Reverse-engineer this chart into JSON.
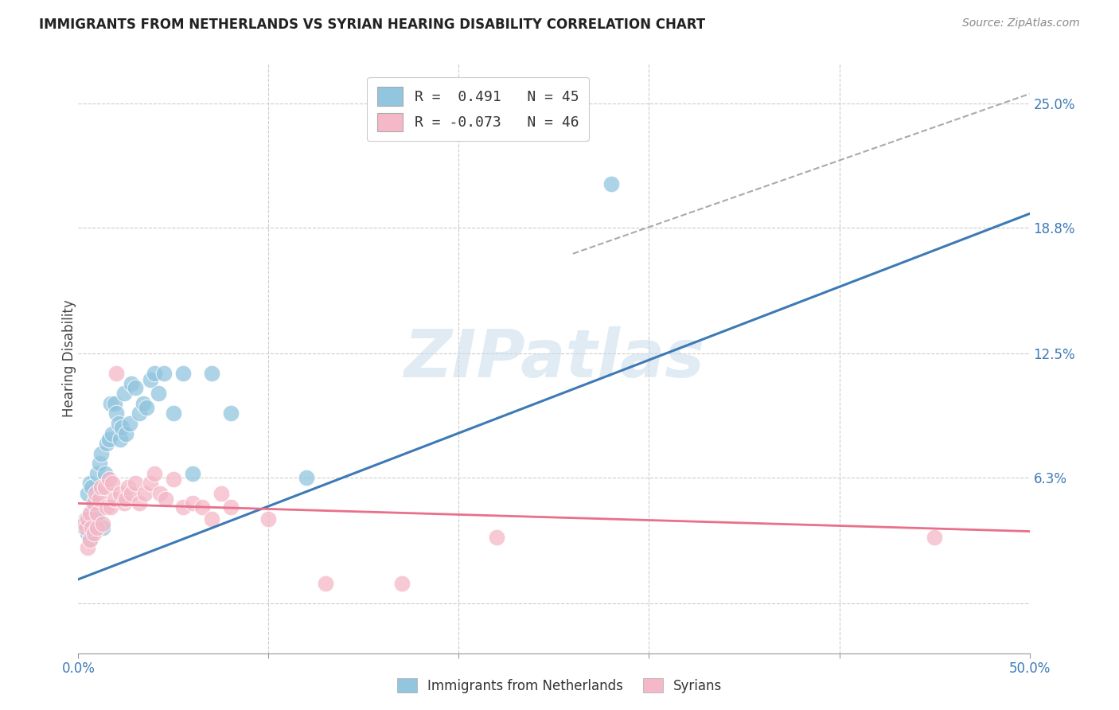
{
  "title": "IMMIGRANTS FROM NETHERLANDS VS SYRIAN HEARING DISABILITY CORRELATION CHART",
  "source": "Source: ZipAtlas.com",
  "ylabel": "Hearing Disability",
  "y_ticks": [
    0.0,
    0.063,
    0.125,
    0.188,
    0.25
  ],
  "y_tick_labels": [
    "",
    "6.3%",
    "12.5%",
    "18.8%",
    "25.0%"
  ],
  "x_min": 0.0,
  "x_max": 0.5,
  "y_min": -0.025,
  "y_max": 0.27,
  "legend_r1": "R =  0.491   N = 45",
  "legend_r2": "R = -0.073   N = 46",
  "blue_color": "#92c5de",
  "pink_color": "#f4b8c8",
  "blue_line_color": "#3d7ab5",
  "pink_line_color": "#e8708a",
  "dashed_line_color": "#aaaaaa",
  "watermark_text": "ZIPatlas",
  "blue_scatter_x": [
    0.003,
    0.004,
    0.005,
    0.005,
    0.006,
    0.006,
    0.007,
    0.007,
    0.008,
    0.008,
    0.009,
    0.01,
    0.01,
    0.011,
    0.012,
    0.013,
    0.014,
    0.015,
    0.016,
    0.017,
    0.018,
    0.019,
    0.02,
    0.021,
    0.022,
    0.023,
    0.024,
    0.025,
    0.027,
    0.028,
    0.03,
    0.032,
    0.034,
    0.036,
    0.038,
    0.04,
    0.042,
    0.045,
    0.05,
    0.055,
    0.06,
    0.07,
    0.08,
    0.12,
    0.28
  ],
  "blue_scatter_y": [
    0.038,
    0.042,
    0.035,
    0.055,
    0.032,
    0.06,
    0.045,
    0.058,
    0.05,
    0.042,
    0.052,
    0.044,
    0.065,
    0.07,
    0.075,
    0.038,
    0.065,
    0.08,
    0.082,
    0.1,
    0.085,
    0.1,
    0.095,
    0.09,
    0.082,
    0.088,
    0.105,
    0.085,
    0.09,
    0.11,
    0.108,
    0.095,
    0.1,
    0.098,
    0.112,
    0.115,
    0.105,
    0.115,
    0.095,
    0.115,
    0.065,
    0.115,
    0.095,
    0.063,
    0.21
  ],
  "pink_scatter_x": [
    0.003,
    0.004,
    0.005,
    0.005,
    0.006,
    0.006,
    0.007,
    0.008,
    0.008,
    0.009,
    0.01,
    0.01,
    0.011,
    0.012,
    0.013,
    0.014,
    0.015,
    0.016,
    0.017,
    0.018,
    0.019,
    0.02,
    0.022,
    0.024,
    0.025,
    0.026,
    0.028,
    0.03,
    0.032,
    0.035,
    0.038,
    0.04,
    0.043,
    0.046,
    0.05,
    0.055,
    0.06,
    0.065,
    0.07,
    0.075,
    0.08,
    0.1,
    0.13,
    0.17,
    0.22,
    0.45
  ],
  "pink_scatter_y": [
    0.04,
    0.038,
    0.042,
    0.028,
    0.045,
    0.032,
    0.038,
    0.05,
    0.035,
    0.055,
    0.038,
    0.045,
    0.052,
    0.058,
    0.04,
    0.058,
    0.048,
    0.062,
    0.048,
    0.06,
    0.052,
    0.115,
    0.055,
    0.05,
    0.052,
    0.058,
    0.055,
    0.06,
    0.05,
    0.055,
    0.06,
    0.065,
    0.055,
    0.052,
    0.062,
    0.048,
    0.05,
    0.048,
    0.042,
    0.055,
    0.048,
    0.042,
    0.01,
    0.01,
    0.033,
    0.033
  ],
  "blue_line_x": [
    0.0,
    0.5
  ],
  "blue_line_y": [
    0.012,
    0.195
  ],
  "pink_line_x": [
    0.0,
    0.5
  ],
  "pink_line_y": [
    0.05,
    0.036
  ],
  "dash_line_x": [
    0.26,
    0.5
  ],
  "dash_line_y": [
    0.175,
    0.255
  ]
}
